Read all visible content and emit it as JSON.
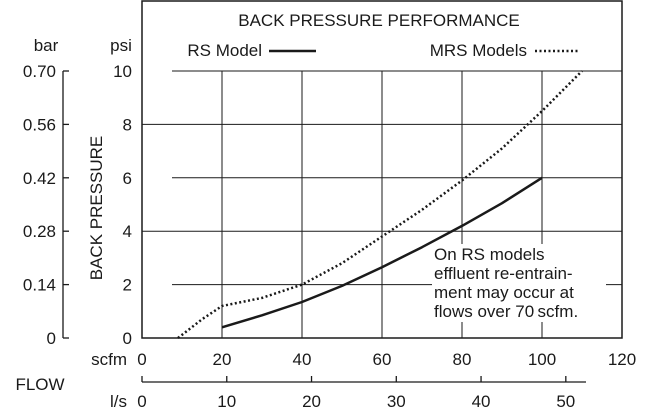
{
  "chart_data": {
    "type": "line",
    "title": "BACK PRESSURE PERFORMANCE",
    "ylabel": "BACK PRESSURE",
    "xlabel": "FLOW",
    "x_unit_primary": "scfm",
    "x_unit_secondary": "l/s",
    "y_unit_primary": "psi",
    "y_unit_secondary": "bar",
    "xlim": [
      0,
      120
    ],
    "ylim": [
      0,
      10
    ],
    "x_ticks": [
      "0",
      "20",
      "40",
      "60",
      "80",
      "100",
      "120"
    ],
    "x_ticks_secondary": [
      "0",
      "10",
      "20",
      "30",
      "40",
      "50"
    ],
    "y_ticks": [
      "0",
      "2",
      "4",
      "6",
      "8",
      "10"
    ],
    "y_ticks_secondary": [
      "0",
      "0.14",
      "0.28",
      "0.42",
      "0.56",
      "0.70"
    ],
    "grid": true,
    "legend_position": "top",
    "series": [
      {
        "name": "RS Model",
        "style": "solid",
        "x": [
          20,
          30,
          40,
          50,
          60,
          70,
          80,
          90,
          100
        ],
        "y": [
          0.4,
          0.85,
          1.35,
          1.95,
          2.65,
          3.4,
          4.2,
          5.05,
          6.0
        ]
      },
      {
        "name": "MRS Models",
        "style": "dotted",
        "x": [
          9,
          15,
          20,
          30,
          40,
          50,
          60,
          70,
          80,
          90,
          100,
          110
        ],
        "y": [
          0,
          0.7,
          1.2,
          1.5,
          2.0,
          2.8,
          3.8,
          4.8,
          5.9,
          7.1,
          8.5,
          10.0
        ]
      }
    ],
    "annotations": [
      "On RS models",
      "effluent re-entrain-",
      "ment may occur at",
      "flows over 70 scfm."
    ]
  }
}
